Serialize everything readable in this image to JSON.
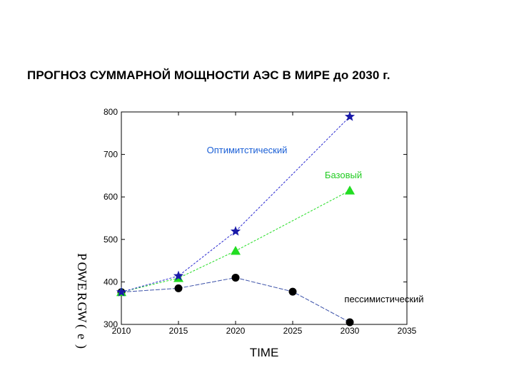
{
  "title": "ПРОГНОЗ  СУММАРНОЙ МОЩНОСТИ АЭС В МИРЕ  до 2030 г.",
  "chart_data": {
    "type": "line",
    "title": "ПРОГНОЗ  СУММАРНОЙ МОЩНОСТИ АЭС В МИРЕ  до 2030 г.",
    "xlabel": "TIME",
    "ylabel": "POWER GW(e)",
    "xlim": [
      2010,
      2035
    ],
    "ylim": [
      300,
      800
    ],
    "xticks": [
      "2010",
      "2015",
      "2020",
      "2025",
      "2030",
      "2035"
    ],
    "yticks": [
      "300",
      "400",
      "500",
      "600",
      "700",
      "800"
    ],
    "grid": false,
    "series": [
      {
        "label": "Оптимитстический",
        "marker": "star",
        "color": "#1a1aa8",
        "line_color": "#2a2ad0",
        "label_color": "#1a5fd6",
        "x": [
          2010,
          2015,
          2020,
          2030
        ],
        "y": [
          376,
          414,
          519,
          789
        ]
      },
      {
        "label": "Базовый",
        "marker": "triangle",
        "color": "#22dd22",
        "line_color": "#22dd22",
        "label_color": "#22cc22",
        "x": [
          2010,
          2015,
          2020,
          2030
        ],
        "y": [
          376,
          409,
          473,
          615
        ]
      },
      {
        "label": "пессимистический",
        "marker": "circle",
        "color": "#000000",
        "line_color": "#3a50a8",
        "label_color": "#000000",
        "x": [
          2010,
          2015,
          2020,
          2025,
          2030
        ],
        "y": [
          376,
          385,
          410,
          377,
          305
        ]
      }
    ]
  }
}
